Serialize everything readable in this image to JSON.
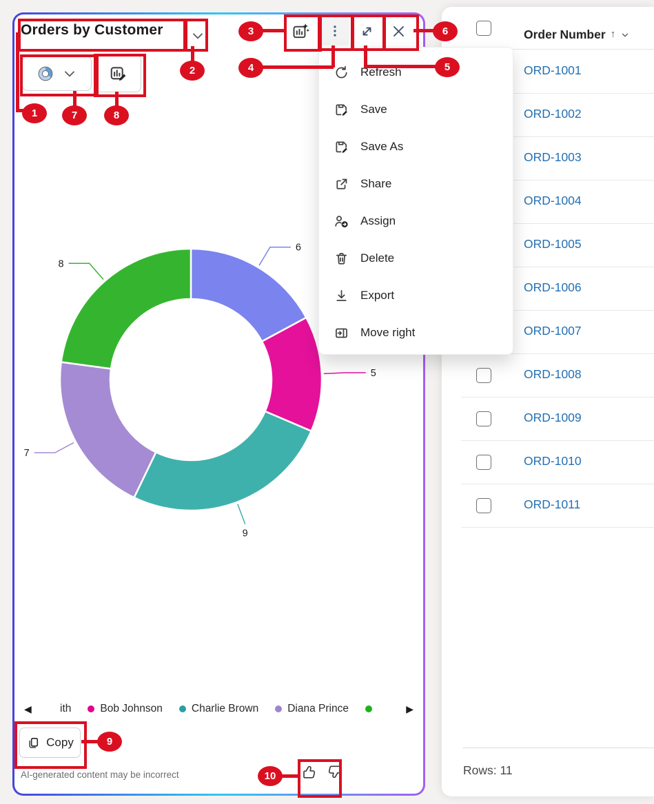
{
  "chart_panel": {
    "title": "Orders by Customer",
    "title_chevron_icon": "chevron-down-icon",
    "toolbar": {
      "ai_insights_icon": "chart-sparkle-icon",
      "more_icon": "kebab-menu-icon",
      "expand_icon": "expand-icon",
      "close_icon": "close-icon"
    },
    "chart_type_button": {
      "icon": "donut-chart-icon",
      "chevron_icon": "chevron-down-icon"
    },
    "edit_chart_button": {
      "icon": "edit-chart-icon"
    },
    "legend": {
      "prev": "◀",
      "next": "▶"
    },
    "copy_button": {
      "label": "Copy",
      "icon": "copy-icon"
    },
    "disclaimer": "AI-generated content may be incorrect",
    "feedback": {
      "like_icon": "thumbs-up-icon",
      "dislike_icon": "thumbs-down-icon"
    }
  },
  "chart_data": {
    "type": "pie",
    "donut": true,
    "title": "Orders by Customer",
    "slices": [
      {
        "label": "6",
        "value": 6,
        "color": "#7B83EE"
      },
      {
        "label": "5",
        "value": 5,
        "color": "#E5119B"
      },
      {
        "label": "9",
        "value": 9,
        "color": "#3FB1AC"
      },
      {
        "label": "7",
        "value": 7,
        "color": "#A58BD3"
      },
      {
        "label": "8",
        "value": 8,
        "color": "#35B52F"
      }
    ],
    "legend_visible": [
      {
        "label": "ith",
        "color": null
      },
      {
        "label": "Bob Johnson",
        "color": "#E3008C"
      },
      {
        "label": "Charlie Brown",
        "color": "#2B9FA0"
      },
      {
        "label": "Diana Prince",
        "color": "#9E85CF"
      },
      {
        "label": "",
        "color": "#1DB21D"
      }
    ]
  },
  "context_menu": {
    "items": [
      {
        "label": "Refresh",
        "icon": "refresh-icon"
      },
      {
        "label": "Save",
        "icon": "save-edit-icon"
      },
      {
        "label": "Save As",
        "icon": "save-edit-icon"
      },
      {
        "label": "Share",
        "icon": "share-icon"
      },
      {
        "label": "Assign",
        "icon": "person-arrow-icon"
      },
      {
        "label": "Delete",
        "icon": "trash-icon"
      },
      {
        "label": "Export",
        "icon": "download-icon"
      },
      {
        "label": "Move right",
        "icon": "move-right-icon"
      }
    ]
  },
  "table": {
    "header": {
      "label": "Order Number",
      "sort": "↑",
      "sort_chevron_icon": "chevron-small-icon"
    },
    "rows": [
      "ORD-1001",
      "ORD-1002",
      "ORD-1003",
      "ORD-1004",
      "ORD-1005",
      "ORD-1006",
      "ORD-1007",
      "ORD-1008",
      "ORD-1009",
      "ORD-1010",
      "ORD-1011"
    ],
    "rows_label": "Rows: 11"
  },
  "annotations": {
    "badges": [
      "1",
      "2",
      "3",
      "4",
      "5",
      "6",
      "7",
      "8",
      "9",
      "10"
    ],
    "color": "#DA1021"
  },
  "colors": {
    "border_gradient": [
      "#4744E0",
      "#2FC8F2",
      "#A45EF0"
    ],
    "link_blue": "#2470B3",
    "annotation_red": "#DA1021"
  }
}
